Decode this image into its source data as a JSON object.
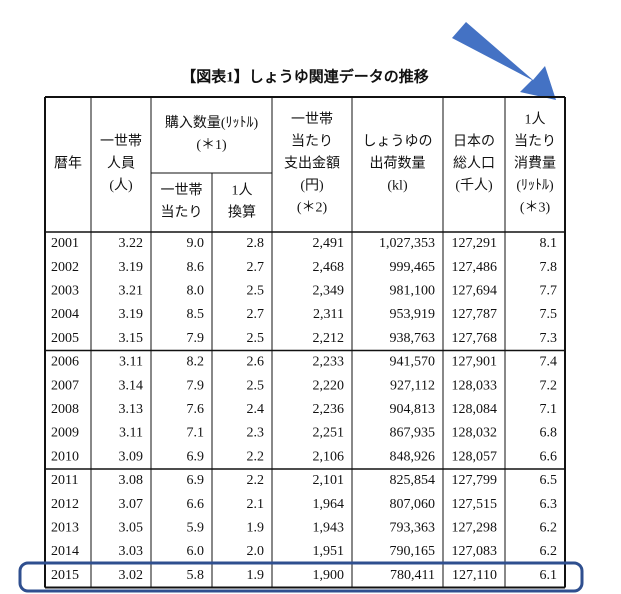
{
  "title": "【図表1】しょうゆ関連データの推移",
  "table": {
    "headers": [
      [
        "暦年"
      ],
      [
        "一世帯",
        "人員",
        "(人)"
      ],
      [
        "購入数量(ﾘｯﾄﾙ)",
        "(＊1)"
      ],
      [
        "一世帯",
        "当たり"
      ],
      [
        "1人",
        "換算"
      ],
      [
        "一世帯",
        "当たり",
        "支出金額",
        "(円)",
        "(＊2)"
      ],
      [
        "しょうゆの",
        "出荷数量",
        "(kl)"
      ],
      [
        "日本の",
        "総人口",
        "(千人)"
      ],
      [
        "1人",
        "当たり",
        "消費量",
        "(ﾘｯﾄﾙ)",
        "(＊3)"
      ]
    ],
    "rows": [
      [
        "2001",
        "3.22",
        "9.0",
        "2.8",
        "2,491",
        "1,027,353",
        "127,291",
        "8.1"
      ],
      [
        "2002",
        "3.19",
        "8.6",
        "2.7",
        "2,468",
        "999,465",
        "127,486",
        "7.8"
      ],
      [
        "2003",
        "3.21",
        "8.0",
        "2.5",
        "2,349",
        "981,100",
        "127,694",
        "7.7"
      ],
      [
        "2004",
        "3.19",
        "8.5",
        "2.7",
        "2,311",
        "953,919",
        "127,787",
        "7.5"
      ],
      [
        "2005",
        "3.15",
        "7.9",
        "2.5",
        "2,212",
        "938,763",
        "127,768",
        "7.3"
      ],
      [
        "2006",
        "3.11",
        "8.2",
        "2.6",
        "2,233",
        "941,570",
        "127,901",
        "7.4"
      ],
      [
        "2007",
        "3.14",
        "7.9",
        "2.5",
        "2,220",
        "927,112",
        "128,033",
        "7.2"
      ],
      [
        "2008",
        "3.13",
        "7.6",
        "2.4",
        "2,236",
        "904,813",
        "128,084",
        "7.1"
      ],
      [
        "2009",
        "3.11",
        "7.1",
        "2.3",
        "2,251",
        "867,935",
        "128,032",
        "6.8"
      ],
      [
        "2010",
        "3.09",
        "6.9",
        "2.2",
        "2,106",
        "848,926",
        "128,057",
        "6.6"
      ],
      [
        "2011",
        "3.08",
        "6.9",
        "2.2",
        "2,101",
        "825,854",
        "127,799",
        "6.5"
      ],
      [
        "2012",
        "3.07",
        "6.6",
        "2.1",
        "1,964",
        "807,060",
        "127,515",
        "6.3"
      ],
      [
        "2013",
        "3.05",
        "5.9",
        "1.9",
        "1,943",
        "793,363",
        "127,298",
        "6.2"
      ],
      [
        "2014",
        "3.03",
        "6.0",
        "2.0",
        "1,951",
        "790,165",
        "127,083",
        "6.2"
      ],
      [
        "2015",
        "3.02",
        "5.8",
        "1.9",
        "1,900",
        "780,411",
        "127,110",
        "6.1"
      ]
    ]
  }
}
